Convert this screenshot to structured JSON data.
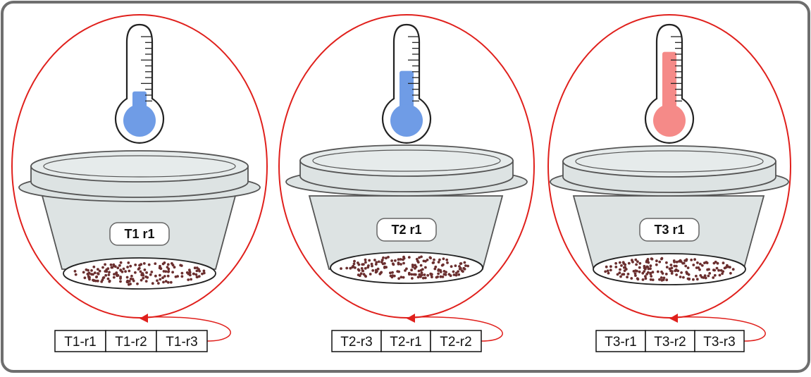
{
  "panels": [
    {
      "label": "T1 r1",
      "thermo_color": "#6f9ce6",
      "cells": [
        "T1-r1",
        "T1-r2",
        "T1-r3"
      ]
    },
    {
      "label": "T2 r1",
      "thermo_color": "#6f9ce6",
      "cells": [
        "T2-r3",
        "T2-r1",
        "T2-r2"
      ]
    },
    {
      "label": "T3 r1",
      "thermo_color": "#f58a88",
      "cells": [
        "T3-r1",
        "T3-r2",
        "T3-r3"
      ]
    }
  ],
  "thermometer_levels": [
    0.28,
    0.55,
    0.8
  ],
  "colors": {
    "frame": "#6e6e6e",
    "ellipse": "#e0201c",
    "container_fill": "#dde3e3",
    "container_stroke": "#555555",
    "seed": "#6b2f2f"
  }
}
